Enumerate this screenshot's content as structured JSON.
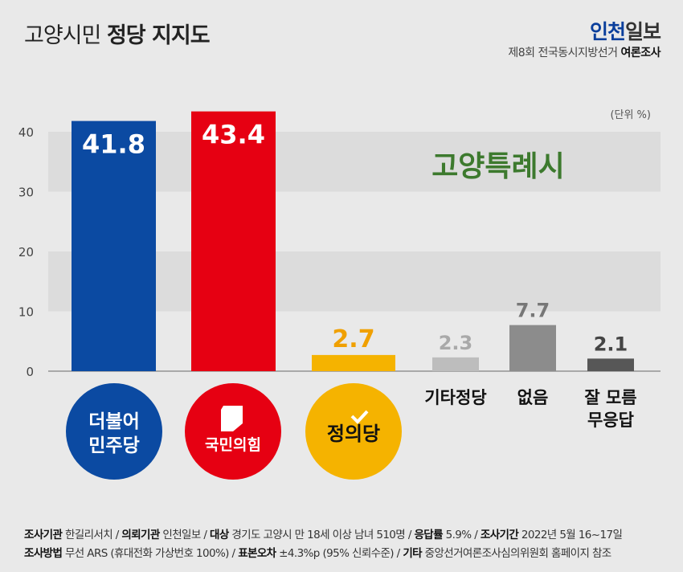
{
  "header": {
    "title_light": "고양시민",
    "title_bold": "정당 지지도",
    "brand_part1": "인천",
    "brand_part2": "일보",
    "subtitle_light": "제8회 전국동시지방선거",
    "subtitle_bold": "여론조사",
    "unit": "(단위 %)"
  },
  "chart_data": {
    "type": "bar",
    "annotation": "고양특례시",
    "annotation_parts": [
      "고양",
      "특례시"
    ],
    "categories": [
      "더불어민주당",
      "국민의힘",
      "정의당",
      "기타정당",
      "없음",
      "잘 모름 무응답"
    ],
    "category_labels": [
      [
        "더불어",
        "민주당"
      ],
      [
        "국민의힘"
      ],
      [
        "정의당"
      ],
      [
        "기타정당"
      ],
      [
        "없음"
      ],
      [
        "잘 모름",
        "무응답"
      ]
    ],
    "values": [
      41.8,
      43.4,
      2.7,
      2.3,
      7.7,
      2.1
    ],
    "value_labels": [
      "41.8",
      "43.4",
      "2.7",
      "2.3",
      "7.7",
      "2.1"
    ],
    "colors": [
      "#0b4aa2",
      "#e60012",
      "#f5b300",
      "#bdbdbd",
      "#8c8c8c",
      "#575757"
    ],
    "label_colors": [
      "#ffffff",
      "#ffffff",
      "#f0a000",
      "#a9a9a9",
      "#777777",
      "#444444"
    ],
    "yticks": [
      0,
      10,
      20,
      30,
      40
    ],
    "ylim": [
      0,
      44
    ],
    "grid": "alternating bands"
  },
  "footer": {
    "line1": [
      [
        "조사기관",
        "한길리서치"
      ],
      [
        "의뢰기관",
        "인천일보"
      ],
      [
        "대상",
        "경기도 고양시 만 18세 이상 남녀 510명"
      ],
      [
        "응답률",
        "5.9%"
      ],
      [
        "조사기간",
        "2022년 5월 16~17일"
      ]
    ],
    "line2": [
      [
        "조사방법",
        "무선 ARS (휴대전화 가상번호 100%)"
      ],
      [
        "표본오차",
        "±4.3%p (95% 신뢰수준)"
      ],
      [
        "기타",
        "중앙선거여론조사심의위원회 홈페이지 참조"
      ]
    ]
  }
}
